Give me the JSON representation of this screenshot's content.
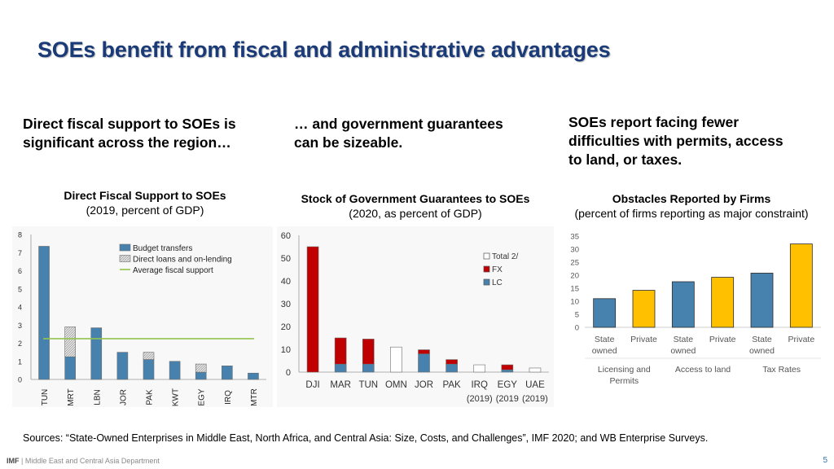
{
  "title": "SOEs benefit from fiscal and administrative advantages",
  "leads": {
    "left": [
      "Direct fiscal support to SOEs is",
      "significant across the region…"
    ],
    "mid": [
      "… and government guarantees",
      "can be sizeable."
    ],
    "right": [
      "SOEs report facing fewer",
      "difficulties with permits, access",
      "to land, or taxes."
    ]
  },
  "chart_titles": {
    "left": {
      "bold": "Direct Fiscal Support to SOEs",
      "normal": "(2019, percent of GDP)"
    },
    "mid": {
      "bold": "Stock of Government Guarantees to SOEs",
      "normal": "(2020, as percent of GDP)"
    },
    "right": {
      "bold": "Obstacles Reported by Firms",
      "normal": "(percent of firms reporting as major constraint)"
    }
  },
  "chart_data": [
    {
      "type": "bar",
      "title": "Direct Fiscal Support to SOEs",
      "subtitle": "(2019, percent of GDP)",
      "categories": [
        "TUN",
        "MRT",
        "LBN",
        "JOR",
        "PAK",
        "KWT",
        "EGY",
        "IRQ",
        "MTR"
      ],
      "series": [
        {
          "name": "Budget transfers",
          "color": "#4682ad",
          "values": [
            7.35,
            1.25,
            2.85,
            1.5,
            1.1,
            1.0,
            0.4,
            0.75,
            0.35
          ]
        },
        {
          "name": "Direct loans and on-lending",
          "color": "#d6d6d6",
          "values": [
            0,
            1.65,
            0,
            0,
            0.4,
            0,
            0.45,
            0,
            0
          ]
        }
      ],
      "line": {
        "name": "Average fiscal support",
        "color": "#93c34c",
        "value": 2.25
      },
      "ylim": [
        0,
        8
      ],
      "yticks": [
        "0",
        "1",
        "2",
        "3",
        "4",
        "5",
        "6",
        "7",
        "8"
      ],
      "stacked": true
    },
    {
      "type": "bar",
      "title": "Stock of Government Guarantees to SOEs",
      "subtitle": "(2020, as percent of GDP)",
      "categories": [
        "DJI",
        "MAR",
        "TUN",
        "OMN",
        "JOR",
        "PAK",
        "IRQ",
        "EGY",
        "UAE"
      ],
      "category_notes": [
        "",
        "",
        "",
        "",
        "",
        "",
        "(2019)",
        "(2019",
        "(2019)"
      ],
      "series": [
        {
          "name": "LC",
          "color": "#4682ad",
          "values": [
            0,
            3.5,
            3.5,
            0,
            8,
            3.5,
            0,
            1,
            0
          ]
        },
        {
          "name": "FX",
          "color": "#c00000",
          "values": [
            55,
            11.5,
            11,
            0,
            1.8,
            2,
            0,
            2.2,
            0
          ]
        },
        {
          "name": "Total 2/",
          "color": "#ffffff",
          "values": [
            0,
            0,
            0,
            11,
            0,
            0,
            3.2,
            0,
            1.8
          ]
        }
      ],
      "ylim": [
        0,
        60
      ],
      "yticks": [
        "0",
        "10",
        "20",
        "30",
        "40",
        "50",
        "60"
      ],
      "stacked": true
    },
    {
      "type": "bar",
      "title": "Obstacles Reported by Firms",
      "subtitle": "(percent of firms reporting as major constraint)",
      "categories": [
        [
          "State",
          "owned"
        ],
        [
          "Private"
        ],
        [
          "State",
          "owned"
        ],
        [
          "Private"
        ],
        [
          "State",
          "owned"
        ],
        [
          "Private"
        ]
      ],
      "values": [
        11,
        14.2,
        17.5,
        19.2,
        20.8,
        32
      ],
      "colors": [
        "#4682ad",
        "#ffc000",
        "#4682ad",
        "#ffc000",
        "#4682ad",
        "#ffc000"
      ],
      "groups": [
        [
          "Licensing and",
          "Permits"
        ],
        [
          "Access to land"
        ],
        [
          "Tax Rates"
        ]
      ],
      "ylim": [
        0,
        35
      ],
      "yticks": [
        "0",
        "5",
        "10",
        "15",
        "20",
        "25",
        "30",
        "35"
      ]
    }
  ],
  "sources": "Sources: “State-Owned Enterprises in Middle East, North Africa, and Central Asia: Size, Costs, and Challenges”, IMF 2020; and WB Enterprise Surveys.",
  "footer": {
    "org": "IMF",
    "dept": "Middle East and Central Asia Department",
    "page": "5"
  }
}
